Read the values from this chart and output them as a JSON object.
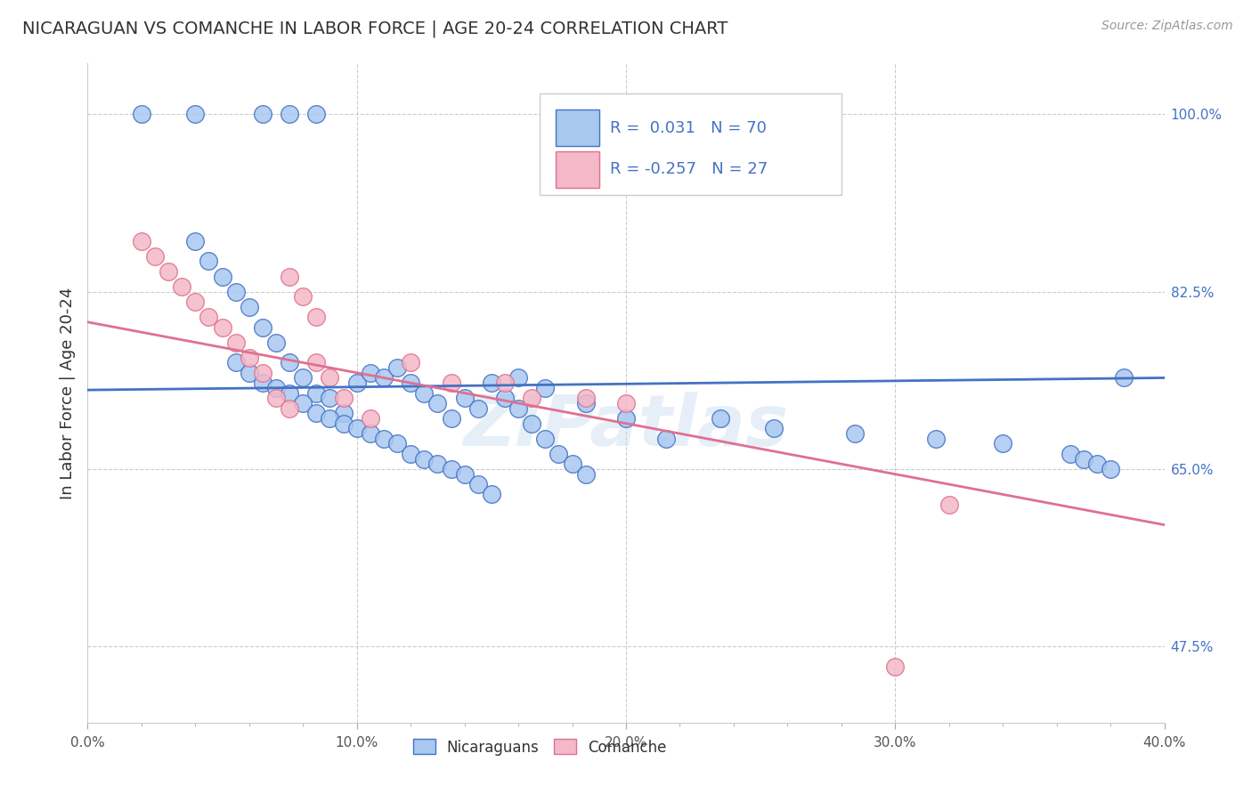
{
  "title": "NICARAGUAN VS COMANCHE IN LABOR FORCE | AGE 20-24 CORRELATION CHART",
  "source": "Source: ZipAtlas.com",
  "ylabel": "In Labor Force | Age 20-24",
  "xlim": [
    0.0,
    0.4
  ],
  "ylim": [
    0.4,
    1.05
  ],
  "xticklabels": [
    "0.0%",
    "",
    "",
    "",
    "",
    "10.0%",
    "",
    "",
    "",
    "",
    "20.0%",
    "",
    "",
    "",
    "",
    "30.0%",
    "",
    "",
    "",
    "",
    "40.0%"
  ],
  "xtick_vals": [
    0.0,
    0.02,
    0.04,
    0.06,
    0.08,
    0.1,
    0.12,
    0.14,
    0.16,
    0.18,
    0.2,
    0.22,
    0.24,
    0.26,
    0.28,
    0.3,
    0.32,
    0.34,
    0.36,
    0.38,
    0.4
  ],
  "yticks_right": [
    0.475,
    0.65,
    0.825,
    1.0
  ],
  "ytick_right_labels": [
    "47.5%",
    "65.0%",
    "82.5%",
    "100.0%"
  ],
  "blue_R": 0.031,
  "blue_N": 70,
  "pink_R": -0.257,
  "pink_N": 27,
  "blue_color": "#a8c8f0",
  "blue_line_color": "#4472c4",
  "pink_color": "#f4b8c8",
  "pink_line_color": "#e07090",
  "background_color": "#ffffff",
  "grid_color": "#cccccc",
  "watermark": "ZIPatlas",
  "blue_scatter_x": [
    0.02,
    0.04,
    0.065,
    0.075,
    0.085,
    0.04,
    0.045,
    0.05,
    0.055,
    0.06,
    0.065,
    0.07,
    0.075,
    0.08,
    0.085,
    0.09,
    0.095,
    0.1,
    0.105,
    0.11,
    0.115,
    0.12,
    0.125,
    0.13,
    0.135,
    0.14,
    0.145,
    0.15,
    0.155,
    0.16,
    0.165,
    0.17,
    0.175,
    0.18,
    0.185,
    0.055,
    0.06,
    0.065,
    0.07,
    0.075,
    0.08,
    0.085,
    0.09,
    0.095,
    0.1,
    0.105,
    0.11,
    0.115,
    0.12,
    0.125,
    0.13,
    0.135,
    0.14,
    0.145,
    0.15,
    0.16,
    0.17,
    0.185,
    0.2,
    0.215,
    0.235,
    0.255,
    0.285,
    0.315,
    0.34,
    0.365,
    0.37,
    0.375,
    0.38,
    0.385
  ],
  "blue_scatter_y": [
    1.0,
    1.0,
    1.0,
    1.0,
    1.0,
    0.875,
    0.855,
    0.84,
    0.825,
    0.81,
    0.79,
    0.775,
    0.755,
    0.74,
    0.725,
    0.72,
    0.705,
    0.735,
    0.745,
    0.74,
    0.75,
    0.735,
    0.725,
    0.715,
    0.7,
    0.72,
    0.71,
    0.735,
    0.72,
    0.71,
    0.695,
    0.68,
    0.665,
    0.655,
    0.645,
    0.755,
    0.745,
    0.735,
    0.73,
    0.725,
    0.715,
    0.705,
    0.7,
    0.695,
    0.69,
    0.685,
    0.68,
    0.675,
    0.665,
    0.66,
    0.655,
    0.65,
    0.645,
    0.635,
    0.625,
    0.74,
    0.73,
    0.715,
    0.7,
    0.68,
    0.7,
    0.69,
    0.685,
    0.68,
    0.675,
    0.665,
    0.66,
    0.655,
    0.65,
    0.74
  ],
  "pink_scatter_x": [
    0.02,
    0.025,
    0.03,
    0.035,
    0.04,
    0.045,
    0.05,
    0.055,
    0.06,
    0.065,
    0.07,
    0.075,
    0.085,
    0.09,
    0.075,
    0.08,
    0.085,
    0.095,
    0.105,
    0.12,
    0.135,
    0.155,
    0.165,
    0.185,
    0.2,
    0.3,
    0.32
  ],
  "pink_scatter_y": [
    0.875,
    0.86,
    0.845,
    0.83,
    0.815,
    0.8,
    0.79,
    0.775,
    0.76,
    0.745,
    0.72,
    0.71,
    0.755,
    0.74,
    0.84,
    0.82,
    0.8,
    0.72,
    0.7,
    0.755,
    0.735,
    0.735,
    0.72,
    0.72,
    0.715,
    0.455,
    0.615
  ],
  "blue_trend_x": [
    0.0,
    0.4
  ],
  "blue_trend_y": [
    0.728,
    0.74
  ],
  "pink_trend_x": [
    0.0,
    0.4
  ],
  "pink_trend_y": [
    0.795,
    0.595
  ]
}
